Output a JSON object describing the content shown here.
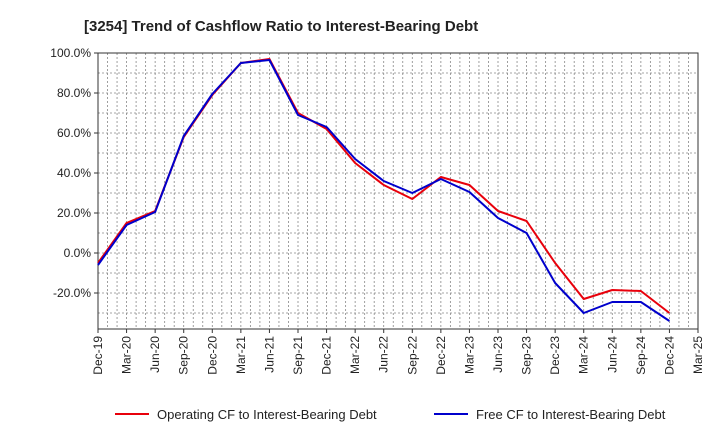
{
  "chart_data": {
    "type": "line",
    "title": "[3254]  Trend of Cashflow Ratio to Interest-Bearing Debt",
    "xlabel": "",
    "ylabel": "",
    "x_ticks": [
      "Dec-19",
      "Mar-20",
      "Jun-20",
      "Sep-20",
      "Dec-20",
      "Mar-21",
      "Jun-21",
      "Sep-21",
      "Dec-21",
      "Mar-22",
      "Jun-22",
      "Sep-22",
      "Dec-22",
      "Mar-23",
      "Jun-23",
      "Sep-23",
      "Dec-23",
      "Mar-24",
      "Jun-24",
      "Sep-24",
      "Dec-24",
      "Mar-25"
    ],
    "y_ticks": [
      "100.0%",
      "80.0%",
      "60.0%",
      "40.0%",
      "20.0%",
      "0.0%",
      "-20.0%"
    ],
    "y_tick_values": [
      100,
      80,
      60,
      40,
      20,
      0,
      -20
    ],
    "ylim": [
      -38,
      100
    ],
    "grid": true,
    "legend_position": "bottom",
    "series": [
      {
        "name": "Operating CF to Interest-Bearing Debt",
        "color": "#e8000b",
        "values": [
          -5,
          15,
          21,
          58,
          79,
          95,
          97,
          70,
          62,
          45,
          34,
          27,
          38,
          34,
          21,
          16,
          -5,
          -23,
          -18.5,
          -19,
          -30,
          null
        ]
      },
      {
        "name": "Free CF to Interest-Bearing Debt",
        "color": "#0000cc",
        "values": [
          -6,
          14,
          20.5,
          58.5,
          79.5,
          95,
          96.5,
          69,
          63,
          47,
          36,
          30,
          37,
          30.5,
          17.5,
          10,
          -15,
          -30,
          -24.5,
          -24.5,
          -34,
          null
        ]
      }
    ]
  }
}
